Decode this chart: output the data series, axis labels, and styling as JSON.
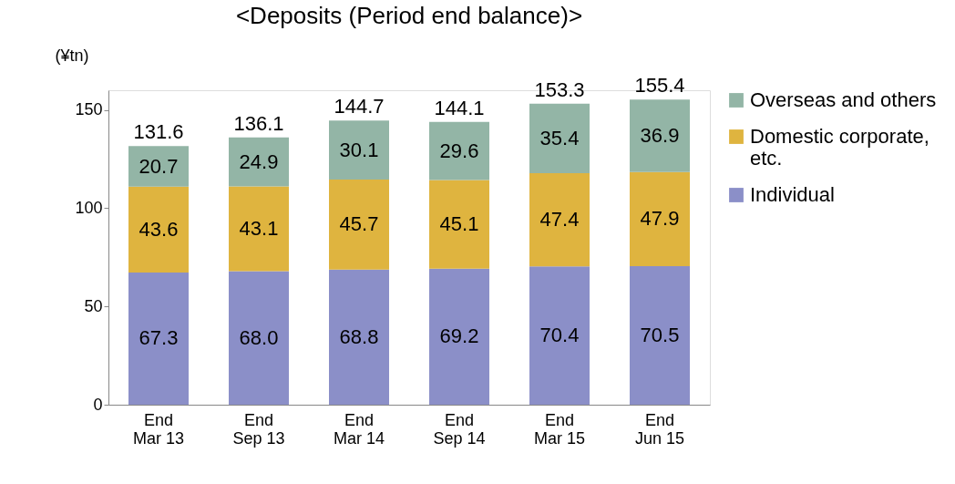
{
  "chart_data": {
    "type": "bar",
    "title": "<Deposits (Period end balance)>",
    "ylabel": "(¥tn)",
    "categories": [
      "End\nMar 13",
      "End\nSep 13",
      "End\nMar 14",
      "End\nSep 14",
      "End\nMar 15",
      "End\nJun 15"
    ],
    "series": [
      {
        "name": "Individual",
        "color": "#8b8fc8",
        "values": [
          67.3,
          68.0,
          68.8,
          69.2,
          70.4,
          70.5
        ],
        "value_labels": [
          "67.3",
          "68.0",
          "68.8",
          "69.2",
          "70.4",
          "70.5"
        ]
      },
      {
        "name": "Domestic corporate,\netc.",
        "color": "#dfb43f",
        "values": [
          43.6,
          43.1,
          45.7,
          45.1,
          47.4,
          47.9
        ],
        "value_labels": [
          "43.6",
          "43.1",
          "45.7",
          "45.1",
          "47.4",
          "47.9"
        ]
      },
      {
        "name": "Overseas and others",
        "color": "#93b5a6",
        "values": [
          20.7,
          24.9,
          30.1,
          29.6,
          35.4,
          36.9
        ],
        "value_labels": [
          "20.7",
          "24.9",
          "30.1",
          "29.6",
          "35.4",
          "36.9"
        ]
      }
    ],
    "stacked": true,
    "totals": [
      "131.6",
      "136.1",
      "144.7",
      "144.1",
      "153.3",
      "155.4"
    ],
    "ylim": [
      0,
      160
    ],
    "yticks": [
      0,
      50,
      100,
      150
    ],
    "grid": false,
    "legend": "right"
  }
}
